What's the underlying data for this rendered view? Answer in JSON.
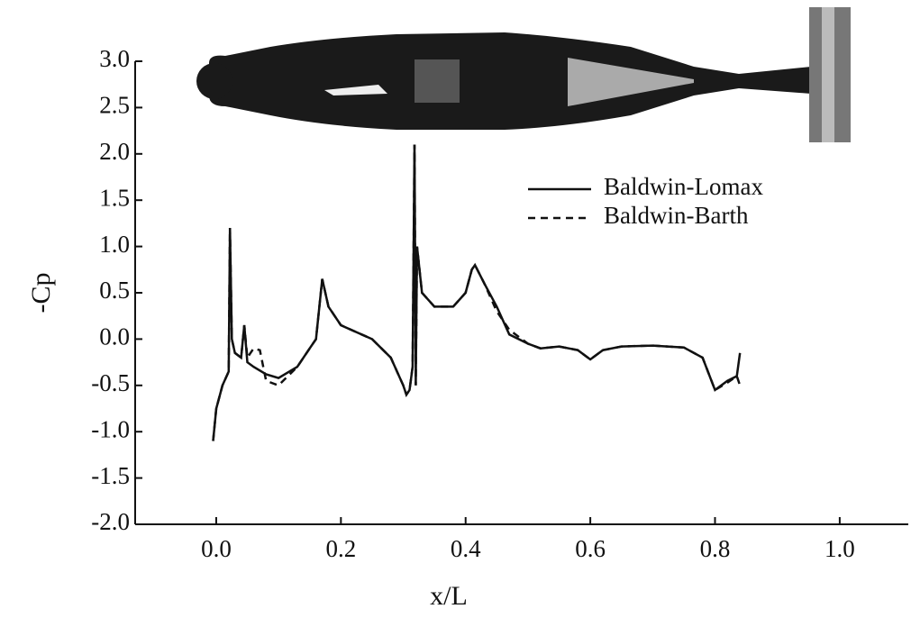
{
  "chart_data": {
    "type": "line",
    "xlabel": "x/L",
    "ylabel": "-Cp",
    "xlim": [
      -0.13,
      1.11
    ],
    "ylim": [
      -2.0,
      3.0
    ],
    "xticks": [
      {
        "value": 0.0,
        "label": "0.0"
      },
      {
        "value": 0.2,
        "label": "0.2"
      },
      {
        "value": 0.4,
        "label": "0.4"
      },
      {
        "value": 0.6,
        "label": "0.6"
      },
      {
        "value": 0.8,
        "label": "0.8"
      },
      {
        "value": 1.0,
        "label": "1.0"
      }
    ],
    "yticks": [
      {
        "value": -2.0,
        "label": "-2.0"
      },
      {
        "value": -1.5,
        "label": "-1.5"
      },
      {
        "value": -1.0,
        "label": "-1.0"
      },
      {
        "value": -0.5,
        "label": "-0.5"
      },
      {
        "value": 0.0,
        "label": "0.0"
      },
      {
        "value": 0.5,
        "label": "0.5"
      },
      {
        "value": 1.0,
        "label": "1.0"
      },
      {
        "value": 1.5,
        "label": "1.5"
      },
      {
        "value": 2.0,
        "label": "2.0"
      },
      {
        "value": 2.5,
        "label": "2.5"
      },
      {
        "value": 3.0,
        "label": "3.0"
      }
    ],
    "series": [
      {
        "name": "Baldwin-Lomax",
        "color": "#111111",
        "dash": "none",
        "x": [
          -0.005,
          0.0,
          0.01,
          0.02,
          0.022,
          0.025,
          0.03,
          0.04,
          0.045,
          0.05,
          0.06,
          0.08,
          0.1,
          0.13,
          0.15,
          0.16,
          0.17,
          0.18,
          0.2,
          0.25,
          0.28,
          0.3,
          0.305,
          0.31,
          0.315,
          0.318,
          0.32,
          0.322,
          0.33,
          0.35,
          0.38,
          0.4,
          0.41,
          0.415,
          0.43,
          0.45,
          0.47,
          0.5,
          0.52,
          0.55,
          0.58,
          0.6,
          0.62,
          0.65,
          0.7,
          0.75,
          0.78,
          0.8,
          0.82,
          0.835,
          0.84
        ],
        "values": [
          -1.1,
          -0.75,
          -0.5,
          -0.35,
          1.2,
          0.0,
          -0.15,
          -0.2,
          0.15,
          -0.25,
          -0.3,
          -0.38,
          -0.42,
          -0.3,
          -0.1,
          0.0,
          0.65,
          0.35,
          0.15,
          0.0,
          -0.2,
          -0.5,
          -0.6,
          -0.55,
          -0.3,
          2.1,
          -0.5,
          1.0,
          0.5,
          0.35,
          0.35,
          0.5,
          0.75,
          0.8,
          0.6,
          0.35,
          0.05,
          -0.05,
          -0.1,
          -0.08,
          -0.12,
          -0.22,
          -0.12,
          -0.08,
          -0.07,
          -0.09,
          -0.2,
          -0.55,
          -0.45,
          -0.4,
          -0.15
        ]
      },
      {
        "name": "Baldwin-Barth",
        "color": "#111111",
        "dash": "8,6",
        "x": [
          -0.005,
          0.0,
          0.01,
          0.02,
          0.022,
          0.025,
          0.03,
          0.04,
          0.045,
          0.05,
          0.06,
          0.07,
          0.08,
          0.1,
          0.13,
          0.15,
          0.16,
          0.17,
          0.18,
          0.2,
          0.25,
          0.28,
          0.3,
          0.305,
          0.31,
          0.315,
          0.318,
          0.32,
          0.322,
          0.33,
          0.35,
          0.38,
          0.4,
          0.41,
          0.415,
          0.43,
          0.45,
          0.47,
          0.5,
          0.52,
          0.55,
          0.58,
          0.6,
          0.62,
          0.65,
          0.7,
          0.75,
          0.78,
          0.8,
          0.82,
          0.835,
          0.84
        ],
        "values": [
          -1.1,
          -0.75,
          -0.5,
          -0.35,
          1.2,
          0.0,
          -0.15,
          -0.2,
          0.15,
          -0.2,
          -0.1,
          -0.12,
          -0.45,
          -0.5,
          -0.3,
          -0.1,
          0.0,
          0.65,
          0.35,
          0.15,
          0.0,
          -0.2,
          -0.5,
          -0.6,
          -0.55,
          -0.3,
          2.1,
          -0.5,
          1.0,
          0.5,
          0.35,
          0.35,
          0.5,
          0.75,
          0.8,
          0.6,
          0.3,
          0.1,
          -0.05,
          -0.1,
          -0.08,
          -0.12,
          -0.22,
          -0.12,
          -0.08,
          -0.07,
          -0.09,
          -0.2,
          -0.55,
          -0.47,
          -0.4,
          -0.5
        ]
      }
    ]
  }
}
